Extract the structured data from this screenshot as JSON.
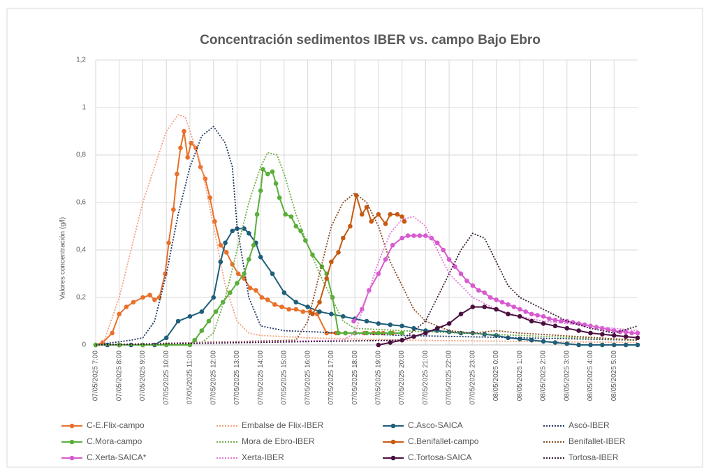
{
  "chart_data": {
    "type": "line",
    "title": "Concentración sedimentos IBER vs. campo Bajo Ebro",
    "y_label": "Valores concentración (g/l)",
    "xlim": [
      7,
      30
    ],
    "ylim": [
      0,
      1.2
    ],
    "yticks": [
      0,
      {
        "value": 0.2,
        "label": "0,2"
      },
      {
        "value": 0.4,
        "label": "0,4"
      },
      {
        "value": 0.6,
        "label": "0,6"
      },
      {
        "value": 0.8,
        "label": "0,8"
      },
      1,
      {
        "value": 1.2,
        "label": "1,2"
      }
    ],
    "xticks": [
      {
        "value": 7,
        "label": "07/05/2025 7:00"
      },
      {
        "value": 8,
        "label": "07/05/2025 8:00"
      },
      {
        "value": 9,
        "label": "07/05/2025 9:00"
      },
      {
        "value": 10,
        "label": "07/05/2025 10:00"
      },
      {
        "value": 11,
        "label": "07/05/2025 11:00"
      },
      {
        "value": 12,
        "label": "07/05/2025 12:00"
      },
      {
        "value": 13,
        "label": "07/05/2025 13:00"
      },
      {
        "value": 14,
        "label": "07/05/2025 14:00"
      },
      {
        "value": 15,
        "label": "07/05/2025 15:00"
      },
      {
        "value": 16,
        "label": "07/05/2025 16:00"
      },
      {
        "value": 17,
        "label": "07/05/2025 17:00"
      },
      {
        "value": 18,
        "label": "07/05/2025 18:00"
      },
      {
        "value": 19,
        "label": "07/05/2025 19:00"
      },
      {
        "value": 20,
        "label": "07/05/2025 20:00"
      },
      {
        "value": 21,
        "label": "07/05/2025 21:00"
      },
      {
        "value": 22,
        "label": "07/05/2025 22:00"
      },
      {
        "value": 23,
        "label": "07/05/2025 23:00"
      },
      {
        "value": 24,
        "label": "08/05/2025 0:00"
      },
      {
        "value": 25,
        "label": "08/05/2025 1:00"
      },
      {
        "value": 26,
        "label": "08/05/2025 2:00"
      },
      {
        "value": 27,
        "label": "08/05/2025 3:00"
      },
      {
        "value": 28,
        "label": "08/05/2025 4:00"
      },
      {
        "value": 29,
        "label": "08/05/2025 5:00"
      }
    ],
    "grid": true,
    "legend": "bottom",
    "series": [
      {
        "name": "C-E.Flix-campo",
        "color": "#e8702a",
        "line_style": "solid",
        "marker": true,
        "x": [
          7,
          7.3,
          7.7,
          8,
          8.3,
          8.6,
          9,
          9.3,
          9.5,
          9.7,
          9.95,
          10.1,
          10.3,
          10.45,
          10.6,
          10.75,
          10.9,
          11.05,
          11.25,
          11.45,
          11.65,
          11.85,
          12.05,
          12.3,
          12.55,
          12.8,
          13.05,
          13.3,
          13.55,
          13.8,
          14.05,
          14.3,
          14.6,
          14.9,
          15.2,
          15.5,
          15.8,
          16.1,
          16.4,
          16.8,
          17.2,
          17.6,
          18,
          18.4,
          18.8,
          19.2,
          19.6,
          20
        ],
        "values": [
          0,
          0.01,
          0.05,
          0.13,
          0.16,
          0.18,
          0.2,
          0.21,
          0.19,
          0.2,
          0.3,
          0.43,
          0.57,
          0.72,
          0.83,
          0.9,
          0.79,
          0.85,
          0.83,
          0.75,
          0.7,
          0.62,
          0.52,
          0.42,
          0.39,
          0.34,
          0.3,
          0.28,
          0.24,
          0.23,
          0.2,
          0.19,
          0.17,
          0.16,
          0.15,
          0.15,
          0.14,
          0.14,
          0.13,
          0.05,
          0.05,
          0.05,
          0.05,
          0.05,
          0.05,
          0.05,
          0.05,
          0.05
        ]
      },
      {
        "name": "Embalse de Flix-IBER",
        "color": "#f4a07a",
        "line_style": "dotted",
        "marker": false,
        "x": [
          7.3,
          8,
          8.5,
          9,
          9.5,
          10,
          10.5,
          10.8,
          11,
          11.5,
          12,
          12.5,
          13,
          13.5,
          14,
          16,
          20,
          30
        ],
        "values": [
          0,
          0.2,
          0.4,
          0.6,
          0.75,
          0.9,
          0.97,
          0.96,
          0.9,
          0.75,
          0.5,
          0.25,
          0.1,
          0.05,
          0.04,
          0.03,
          0.02,
          0.01
        ]
      },
      {
        "name": "C.Asco-SAICA",
        "color": "#1f5f7a",
        "line_style": "solid",
        "marker": true,
        "x": [
          7,
          7.5,
          8,
          8.5,
          9,
          9.5,
          10,
          10.5,
          11,
          11.5,
          12,
          12.3,
          12.5,
          12.8,
          13,
          13.3,
          13.5,
          13.8,
          14,
          14.5,
          15,
          15.5,
          16,
          16.5,
          17,
          17.5,
          18,
          18.5,
          19,
          19.5,
          20,
          20.5,
          21,
          21.5,
          22,
          22.5,
          23,
          23.5,
          24,
          24.5,
          25,
          25.5,
          26,
          26.5,
          27,
          27.5,
          28,
          28.5,
          29,
          29.5,
          30
        ],
        "values": [
          0,
          0,
          0,
          0,
          0,
          0,
          0.03,
          0.1,
          0.12,
          0.14,
          0.2,
          0.35,
          0.43,
          0.48,
          0.49,
          0.49,
          0.47,
          0.43,
          0.37,
          0.3,
          0.22,
          0.18,
          0.16,
          0.14,
          0.13,
          0.12,
          0.11,
          0.1,
          0.09,
          0.085,
          0.08,
          0.07,
          0.06,
          0.06,
          0.055,
          0.05,
          0.05,
          0.045,
          0.04,
          0.03,
          0.025,
          0.02,
          0.015,
          0.01,
          0.005,
          0,
          0,
          0,
          0,
          0,
          0
        ]
      },
      {
        "name": "Ascó-IBER",
        "color": "#203864",
        "line_style": "dotted",
        "marker": false,
        "x": [
          7,
          8.5,
          9,
          9.5,
          10,
          10.5,
          11,
          11.5,
          12,
          12.5,
          12.8,
          13,
          13.5,
          14,
          15,
          20,
          30
        ],
        "values": [
          0,
          0.02,
          0.03,
          0.1,
          0.3,
          0.55,
          0.75,
          0.88,
          0.92,
          0.85,
          0.75,
          0.5,
          0.2,
          0.08,
          0.06,
          0.04,
          0.02
        ]
      },
      {
        "name": "C.Mora-campo",
        "color": "#5aae3a",
        "line_style": "solid",
        "marker": true,
        "x": [
          7,
          8,
          9,
          10,
          11,
          11.2,
          11.5,
          11.8,
          12.1,
          12.4,
          12.7,
          13,
          13.3,
          13.5,
          13.7,
          13.85,
          14,
          14.1,
          14.3,
          14.5,
          14.65,
          14.8,
          15.05,
          15.3,
          15.5,
          15.7,
          15.9,
          16.2,
          16.6,
          16.8,
          17.05,
          17.3,
          17.6,
          18,
          18.5,
          19,
          19.5,
          20
        ],
        "values": [
          0,
          0,
          0,
          0,
          0,
          0.02,
          0.06,
          0.1,
          0.14,
          0.18,
          0.22,
          0.26,
          0.3,
          0.36,
          0.42,
          0.55,
          0.65,
          0.74,
          0.72,
          0.73,
          0.68,
          0.62,
          0.55,
          0.54,
          0.5,
          0.48,
          0.44,
          0.38,
          0.33,
          0.3,
          0.2,
          0.05,
          0.05,
          0.05,
          0.05,
          0.05,
          0.05,
          0.05
        ]
      },
      {
        "name": "Mora de Ebro-IBER",
        "color": "#70ad47",
        "line_style": "dotted",
        "marker": false,
        "x": [
          7,
          11.5,
          12,
          12.5,
          13,
          13.5,
          14,
          14.3,
          14.7,
          15,
          15.5,
          16,
          16.5,
          17,
          17.5,
          18,
          20,
          25,
          30
        ],
        "values": [
          0,
          0.01,
          0.05,
          0.2,
          0.4,
          0.6,
          0.75,
          0.81,
          0.8,
          0.72,
          0.55,
          0.42,
          0.3,
          0.2,
          0.1,
          0.07,
          0.06,
          0.04,
          0.02
        ]
      },
      {
        "name": "C.Benifallet-campo",
        "color": "#c55a11",
        "line_style": "solid",
        "marker": true,
        "x": [
          16.2,
          16.5,
          16.8,
          17,
          17.3,
          17.5,
          17.8,
          18.06,
          18.3,
          18.5,
          18.7,
          19,
          19.3,
          19.5,
          19.8,
          20,
          20.1
        ],
        "values": [
          0.13,
          0.18,
          0.28,
          0.35,
          0.39,
          0.45,
          0.5,
          0.63,
          0.55,
          0.58,
          0.52,
          0.55,
          0.51,
          0.55,
          0.55,
          0.54,
          0.52
        ]
      },
      {
        "name": "Benifallet-IBER",
        "color": "#8a4a20",
        "line_style": "dotted",
        "marker": false,
        "x": [
          7,
          15.5,
          16,
          16.5,
          17,
          17.5,
          18,
          18.5,
          19,
          19.5,
          20,
          20.5,
          21,
          22,
          23,
          24,
          25,
          30
        ],
        "values": [
          0,
          0.02,
          0.1,
          0.3,
          0.5,
          0.6,
          0.64,
          0.6,
          0.5,
          0.35,
          0.25,
          0.15,
          0.1,
          0.06,
          0.05,
          0.06,
          0.05,
          0.02
        ]
      },
      {
        "name": "C.Xerta-SAICA*",
        "color": "#d85ad0",
        "line_style": "solid",
        "marker": true,
        "x": [
          17.95,
          18.3,
          18.6,
          19,
          19.3,
          19.6,
          20,
          20.25,
          20.5,
          20.75,
          21,
          21.25,
          21.5,
          21.75,
          22,
          22.25,
          22.5,
          22.75,
          23,
          23.25,
          23.5,
          23.75,
          24,
          24.25,
          24.5,
          24.75,
          25,
          25.25,
          25.5,
          25.75,
          26,
          26.25,
          26.5,
          26.75,
          27,
          27.25,
          27.5,
          27.75,
          28,
          28.25,
          28.5,
          28.75,
          29,
          29.25,
          29.5,
          29.75,
          30
        ],
        "values": [
          0.1,
          0.15,
          0.23,
          0.3,
          0.36,
          0.42,
          0.45,
          0.46,
          0.46,
          0.46,
          0.46,
          0.45,
          0.43,
          0.4,
          0.36,
          0.33,
          0.3,
          0.27,
          0.25,
          0.23,
          0.22,
          0.2,
          0.19,
          0.18,
          0.17,
          0.16,
          0.15,
          0.14,
          0.13,
          0.125,
          0.12,
          0.11,
          0.105,
          0.1,
          0.1,
          0.095,
          0.09,
          0.085,
          0.08,
          0.075,
          0.07,
          0.065,
          0.06,
          0.055,
          0.055,
          0.05,
          0.05
        ]
      },
      {
        "name": "Xerta-IBER",
        "color": "#e07ad8",
        "line_style": "dotted",
        "marker": false,
        "x": [
          7,
          17.5,
          18,
          18.5,
          19,
          19.5,
          20,
          20.5,
          21,
          21.5,
          22,
          23,
          24,
          25,
          26,
          27,
          28,
          30
        ],
        "values": [
          0,
          0.02,
          0.05,
          0.2,
          0.35,
          0.47,
          0.53,
          0.54,
          0.5,
          0.4,
          0.3,
          0.2,
          0.15,
          0.12,
          0.1,
          0.09,
          0.08,
          0.06
        ]
      },
      {
        "name": "C.Tortosa-SAICA",
        "color": "#4a1040",
        "line_style": "solid",
        "marker": true,
        "x": [
          19,
          19.5,
          20,
          20.5,
          21,
          21.5,
          22,
          22.5,
          23,
          23.5,
          24,
          24.5,
          25,
          25.5,
          26,
          26.5,
          27,
          27.5,
          28,
          28.5,
          29,
          29.5,
          30
        ],
        "values": [
          0,
          0.01,
          0.02,
          0.035,
          0.05,
          0.07,
          0.09,
          0.13,
          0.16,
          0.16,
          0.15,
          0.13,
          0.12,
          0.1,
          0.09,
          0.08,
          0.07,
          0.06,
          0.05,
          0.045,
          0.04,
          0.035,
          0.03
        ]
      },
      {
        "name": "Tortosa-IBER",
        "color": "#3a1a3a",
        "line_style": "dotted",
        "marker": false,
        "x": [
          7,
          20,
          21,
          22,
          22.5,
          23,
          23.5,
          24,
          24.5,
          25,
          26,
          27,
          28,
          29,
          30
        ],
        "values": [
          0,
          0.02,
          0.1,
          0.3,
          0.4,
          0.47,
          0.45,
          0.35,
          0.25,
          0.2,
          0.15,
          0.1,
          0.07,
          0.05,
          0.08
        ]
      }
    ]
  }
}
